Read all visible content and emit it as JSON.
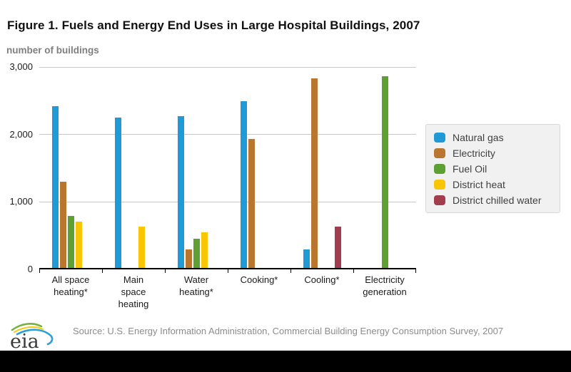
{
  "figure": {
    "title": "Figure 1. Fuels and Energy End Uses in Large Hospital Buildings, 2007",
    "axis_unit_label": "number of buildings",
    "source": "Source: U.S. Energy Information Administration, Commercial Building Energy Consumption Survey, 2007",
    "logo": "eia"
  },
  "chart_data": {
    "type": "bar",
    "title": "Figure 1. Fuels and Energy End Uses in Large Hospital Buildings, 2007",
    "ylabel": "number of buildings",
    "xlabel": "",
    "ylim": [
      0,
      3000
    ],
    "grid": true,
    "legend_position": "right",
    "yticks": [
      {
        "label": "3,000",
        "value": 3000
      },
      {
        "label": "2,000",
        "value": 2000
      },
      {
        "label": "1,000",
        "value": 1000
      },
      {
        "label": "0",
        "value": 0
      }
    ],
    "categories": [
      "All space heating*",
      "Main space heating",
      "Water heating*",
      "Cooking*",
      "Cooling*",
      "Electricity generation"
    ],
    "category_label_lines": [
      [
        "All space",
        "heating*"
      ],
      [
        "Main",
        "space",
        "heating"
      ],
      [
        "Water",
        "heating*"
      ],
      [
        "Cooking*"
      ],
      [
        "Cooling*"
      ],
      [
        "Electricity",
        "generation"
      ]
    ],
    "series": [
      {
        "name": "Natural gas",
        "color": "#1f9ad7",
        "values": [
          2400,
          2230,
          2250,
          2470,
          270,
          null
        ]
      },
      {
        "name": "Electricity",
        "color": "#b9762e",
        "values": [
          1280,
          null,
          280,
          1910,
          2810,
          null
        ]
      },
      {
        "name": "Fuel Oil",
        "color": "#5ea032",
        "values": [
          770,
          null,
          430,
          null,
          null,
          2840
        ]
      },
      {
        "name": "District heat",
        "color": "#f9c606",
        "values": [
          690,
          610,
          530,
          null,
          null,
          null
        ]
      },
      {
        "name": "District chilled water",
        "color": "#a23d4f",
        "values": [
          null,
          null,
          null,
          null,
          610,
          null
        ]
      }
    ]
  }
}
